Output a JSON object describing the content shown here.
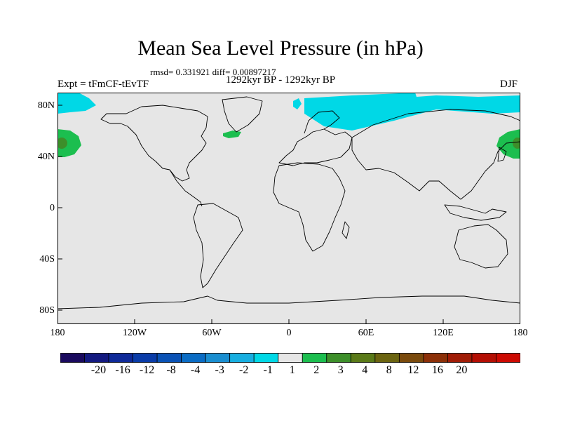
{
  "title": "Mean Sea Level Pressure (in hPa)",
  "stats": "rmsd= 0.331921 diff= 0.00897217",
  "period": "1292kyr BP - 1292kyr BP",
  "experiment": "Expt = tFmCF-tEvTF",
  "season": "DJF",
  "map": {
    "background_color": "#e6e6e6",
    "lat_ticks": [
      "80N",
      "40N",
      "0",
      "40S",
      "80S"
    ],
    "lon_ticks": [
      "180",
      "120W",
      "60W",
      "0",
      "60E",
      "120E",
      "180"
    ]
  },
  "legend": {
    "colors": [
      "#1a0a5e",
      "#141a80",
      "#0f2a99",
      "#0a3ca8",
      "#0a52b5",
      "#0a6cc4",
      "#1a8ed0",
      "#17aee0",
      "#00d8e6",
      "#e6e6e6",
      "#1cbe4f",
      "#3d8f2a",
      "#5a7a18",
      "#6b6410",
      "#7a4a0c",
      "#8c3008",
      "#a01c06",
      "#b40f04",
      "#cc0a02"
    ],
    "labels": [
      "-20",
      "-16",
      "-12",
      "-8",
      "-4",
      "-3",
      "-2",
      "-1",
      "1",
      "2",
      "3",
      "4",
      "8",
      "12",
      "16",
      "20"
    ]
  }
}
